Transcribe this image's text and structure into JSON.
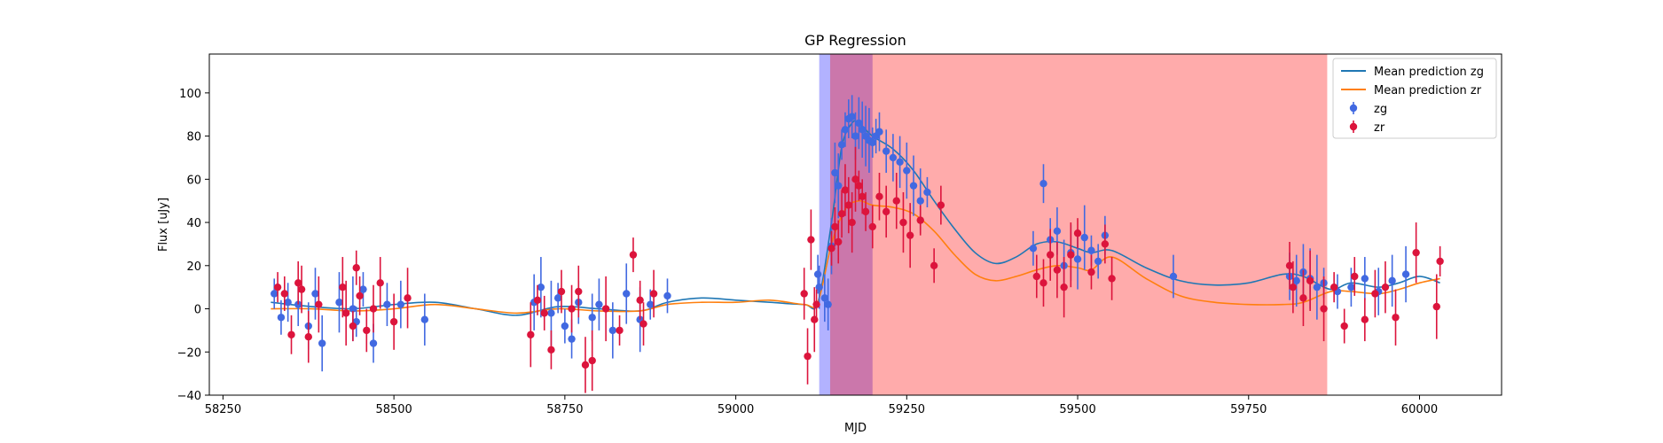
{
  "chart_data": {
    "type": "scatter",
    "title": "GP Regression",
    "xlabel": "MJD",
    "ylabel": "Flux [uJy]",
    "xlim": [
      58230,
      60120
    ],
    "ylim": [
      -40,
      118
    ],
    "xticks": [
      58250,
      58500,
      58750,
      59000,
      59250,
      59500,
      59750,
      60000
    ],
    "yticks": [
      -40,
      -20,
      0,
      20,
      40,
      60,
      80,
      100
    ],
    "grid": false,
    "legend_position": "top-right",
    "legend": [
      "Mean prediction zg",
      "Mean prediction zr",
      "zg",
      "zr"
    ],
    "shaded_regions": [
      {
        "x0": 59122,
        "x1": 59200,
        "color": "#0000ff",
        "opacity": 0.3
      },
      {
        "x0": 59138,
        "x1": 59865,
        "color": "#ff0000",
        "opacity": 0.33
      }
    ],
    "lines": [
      {
        "name": "Mean prediction zg",
        "color": "#1f77b4",
        "x": [
          58320,
          58380,
          58440,
          58500,
          58560,
          58620,
          58680,
          58740,
          58800,
          58860,
          58900,
          58950,
          59000,
          59050,
          59100,
          59120,
          59140,
          59155,
          59170,
          59180,
          59200,
          59230,
          59260,
          59290,
          59320,
          59350,
          59380,
          59410,
          59440,
          59470,
          59500,
          59520,
          59550,
          59600,
          59650,
          59700,
          59750,
          59800,
          59830,
          59870,
          59900,
          59940,
          59970,
          60000,
          60030
        ],
        "y": [
          3,
          1,
          0,
          2,
          3,
          0,
          -3,
          1,
          0,
          -1,
          3,
          5,
          4,
          3,
          2,
          3,
          40,
          75,
          86,
          86,
          80,
          74,
          64,
          50,
          37,
          26,
          21,
          24,
          30,
          31,
          28,
          26,
          27,
          19,
          13,
          11,
          12,
          16,
          15,
          9,
          12,
          10,
          12,
          15,
          12
        ]
      },
      {
        "name": "Mean prediction zr",
        "color": "#ff7f0e",
        "x": [
          58320,
          58380,
          58440,
          58500,
          58560,
          58620,
          58680,
          58740,
          58800,
          58860,
          58900,
          58950,
          59000,
          59050,
          59100,
          59120,
          59140,
          59160,
          59180,
          59200,
          59230,
          59260,
          59290,
          59320,
          59350,
          59380,
          59410,
          59440,
          59470,
          59500,
          59520,
          59550,
          59600,
          59650,
          59700,
          59750,
          59800,
          59830,
          59870,
          59900,
          59940,
          59970,
          60000,
          60030
        ],
        "y": [
          0,
          0,
          -1,
          0,
          2,
          0,
          -2,
          0,
          -1,
          -1,
          2,
          3,
          3,
          4,
          2,
          3,
          30,
          46,
          50,
          48,
          47,
          44,
          36,
          25,
          16,
          13,
          15,
          18,
          20,
          19,
          18,
          24,
          14,
          6,
          3,
          2,
          2,
          3,
          8,
          8,
          7,
          9,
          12,
          14
        ]
      }
    ],
    "series": [
      {
        "name": "zg",
        "color": "#4169e1",
        "x": [
          58325,
          58335,
          58345,
          58360,
          58375,
          58385,
          58395,
          58420,
          58440,
          58445,
          58455,
          58470,
          58490,
          58510,
          58545,
          58705,
          58715,
          58730,
          58740,
          58750,
          58760,
          58770,
          58790,
          58800,
          58820,
          58840,
          58860,
          58875,
          58900,
          59120,
          59122,
          59130,
          59135,
          59140,
          59145,
          59150,
          59155,
          59160,
          59165,
          59170,
          59175,
          59180,
          59185,
          59190,
          59195,
          59200,
          59205,
          59210,
          59220,
          59230,
          59240,
          59250,
          59260,
          59270,
          59280,
          59435,
          59450,
          59460,
          59470,
          59480,
          59490,
          59500,
          59510,
          59520,
          59530,
          59540,
          59640,
          59810,
          59820,
          59830,
          59840,
          59850,
          59860,
          59880,
          59900,
          59920,
          59940,
          59960,
          59980
        ],
        "y": [
          7,
          -4,
          3,
          2,
          -8,
          7,
          -16,
          3,
          0,
          -6,
          9,
          -16,
          2,
          2,
          -5,
          3,
          10,
          -2,
          5,
          -8,
          -14,
          3,
          -4,
          2,
          -10,
          7,
          -5,
          2,
          6,
          16,
          10,
          5,
          2,
          29,
          63,
          57,
          76,
          83,
          88,
          89,
          80,
          86,
          83,
          80,
          78,
          77,
          80,
          82,
          73,
          70,
          68,
          64,
          57,
          50,
          54,
          28,
          58,
          32,
          36,
          20,
          26,
          23,
          33,
          27,
          22,
          34,
          15,
          15,
          13,
          17,
          14,
          10,
          12,
          8,
          10,
          14,
          8,
          13,
          16
        ]
      },
      {
        "name": "zr",
        "color": "#dc143c",
        "x": [
          58330,
          58340,
          58350,
          58360,
          58365,
          58375,
          58390,
          58425,
          58430,
          58440,
          58445,
          58450,
          58460,
          58470,
          58480,
          58500,
          58520,
          58700,
          58710,
          58720,
          58730,
          58745,
          58760,
          58770,
          58780,
          58790,
          58810,
          58830,
          58850,
          58860,
          58865,
          58880,
          59100,
          59105,
          59110,
          59115,
          59118,
          59140,
          59145,
          59150,
          59155,
          59160,
          59165,
          59170,
          59175,
          59180,
          59185,
          59190,
          59200,
          59210,
          59220,
          59235,
          59245,
          59255,
          59270,
          59290,
          59300,
          59440,
          59450,
          59460,
          59470,
          59480,
          59490,
          59500,
          59520,
          59540,
          59550,
          59810,
          59815,
          59830,
          59840,
          59860,
          59875,
          59890,
          59905,
          59920,
          59935,
          59950,
          59965,
          59995,
          60025,
          60030
        ],
        "y": [
          10,
          7,
          -12,
          12,
          9,
          -13,
          2,
          10,
          -2,
          -8,
          19,
          6,
          -10,
          0,
          12,
          -6,
          5,
          -12,
          4,
          -2,
          -19,
          8,
          0,
          8,
          -26,
          -24,
          0,
          -10,
          25,
          4,
          -7,
          7,
          7,
          -22,
          32,
          -5,
          2,
          28,
          38,
          31,
          44,
          55,
          48,
          40,
          60,
          57,
          52,
          45,
          38,
          52,
          45,
          50,
          40,
          34,
          41,
          20,
          48,
          15,
          12,
          25,
          18,
          10,
          25,
          35,
          17,
          30,
          14,
          20,
          10,
          5,
          13,
          0,
          10,
          -8,
          15,
          -5,
          7,
          10,
          -4,
          26,
          1,
          22
        ]
      }
    ]
  }
}
